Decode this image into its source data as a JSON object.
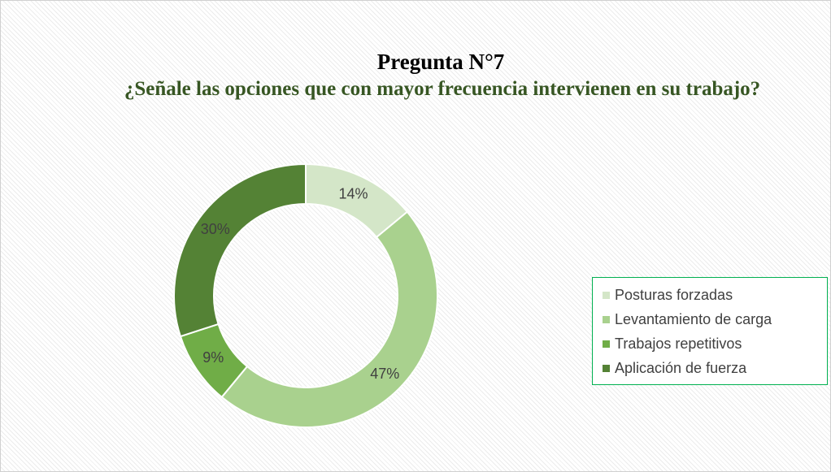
{
  "chart_data": {
    "type": "donut",
    "title": "Pregunta N°7",
    "subtitle": "¿Señale las opciones que con mayor frecuencia intervienen en su trabajo?",
    "categories": [
      "Posturas forzadas",
      "Levantamiento de carga",
      "Trabajos repetitivos",
      "Aplicación de fuerza"
    ],
    "values": [
      14,
      47,
      9,
      30
    ],
    "value_labels": [
      "14%",
      "47%",
      "9%",
      "30%"
    ],
    "colors": [
      "#d4e6c8",
      "#a9d18e",
      "#70ad47",
      "#548235"
    ],
    "legend": "right"
  }
}
